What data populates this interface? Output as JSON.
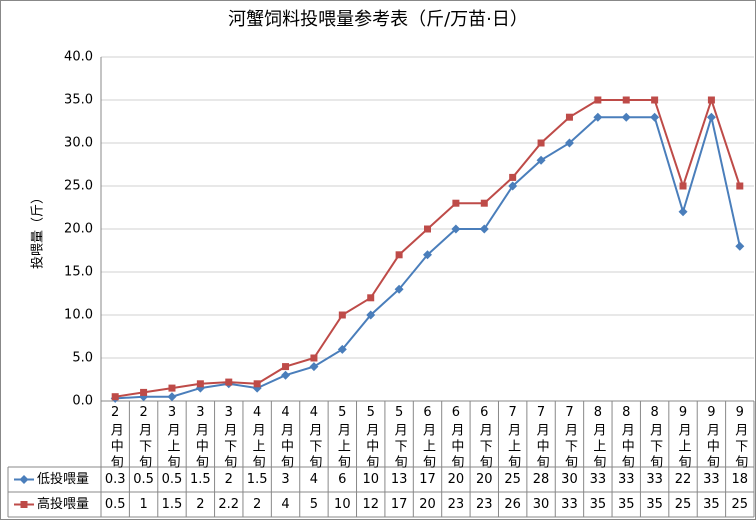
{
  "chart_data": {
    "type": "line",
    "title": "河蟹饲料投喂量参考表（斤/万苗·日）",
    "y_label": "投喂量（斤）",
    "categories": [
      "2月中旬",
      "2月下旬",
      "3月上旬",
      "3月中旬",
      "3月下旬",
      "4月上旬",
      "4月中旬",
      "4月下旬",
      "5月上旬",
      "5月中旬",
      "5月下旬",
      "6月上旬",
      "6月中旬",
      "6月下旬",
      "7月上旬",
      "7月中旬",
      "7月下旬",
      "8月上旬",
      "8月中旬",
      "8月下旬",
      "9月上旬",
      "9月中旬",
      "9月下旬"
    ],
    "series": [
      {
        "name": "低投喂量",
        "color": "#4a7ebb",
        "marker": "diamond",
        "values": [
          0.3,
          0.5,
          0.5,
          1.5,
          2,
          1.5,
          3,
          4,
          6,
          10,
          13,
          17,
          20,
          20,
          25,
          28,
          30,
          33,
          33,
          33,
          22,
          33,
          18
        ]
      },
      {
        "name": "高投喂量",
        "color": "#be4b48",
        "marker": "square",
        "values": [
          0.5,
          1,
          1.5,
          2,
          2.2,
          2,
          4,
          5,
          10,
          12,
          17,
          20,
          23,
          23,
          26,
          30,
          33,
          35,
          35,
          35,
          25,
          35,
          25
        ]
      }
    ],
    "ylim": [
      0,
      40
    ],
    "yticks": [
      {
        "value": 0,
        "label": "0.0"
      },
      {
        "value": 5,
        "label": "5.0"
      },
      {
        "value": 10,
        "label": "10.0"
      },
      {
        "value": 15,
        "label": "15.0"
      },
      {
        "value": 20,
        "label": "20.0"
      },
      {
        "value": 25,
        "label": "25.0"
      },
      {
        "value": 30,
        "label": "30.0"
      },
      {
        "value": 35,
        "label": "35.0"
      },
      {
        "value": 40,
        "label": "40.0"
      }
    ],
    "grid": true
  }
}
